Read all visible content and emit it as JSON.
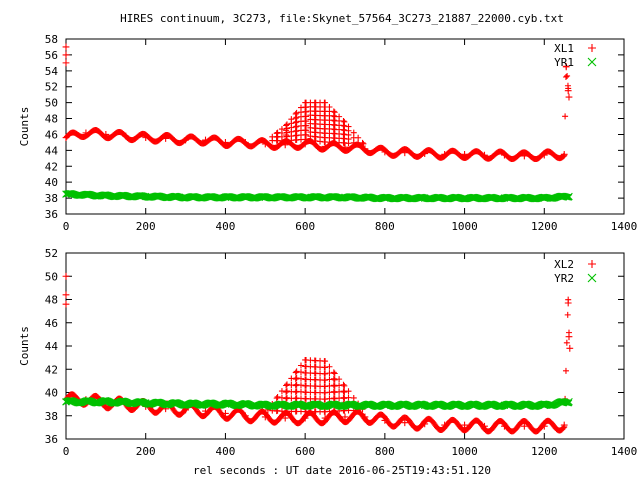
{
  "title": "HIRES continuum, 3C273, file:Skynet_57564_3C273_21887_22000.cyb.txt",
  "xlabel": "rel seconds : UT date 2016-06-25T19:43:51.120",
  "colors": {
    "red": "#ff0000",
    "green": "#00c000"
  },
  "chart_data": [
    {
      "type": "scatter",
      "ylabel": "Counts",
      "xlim": [
        0,
        1400
      ],
      "ylim": [
        36,
        58
      ],
      "x_ticks": [
        0,
        200,
        400,
        600,
        800,
        1000,
        1200,
        1400
      ],
      "y_ticks": [
        36,
        38,
        40,
        42,
        44,
        46,
        48,
        50,
        52,
        54,
        56,
        58
      ],
      "grid": false,
      "legend": "top-right",
      "series": [
        {
          "name": "XL1",
          "marker": "plus",
          "color": "#ff0000",
          "x": [
            0,
            0,
            0,
            0,
            50,
            100,
            150,
            200,
            250,
            300,
            350,
            400,
            450,
            500,
            550,
            600,
            650,
            700,
            750,
            800,
            850,
            900,
            950,
            1000,
            1050,
            1100,
            1150,
            1200,
            1250,
            1255,
            1260,
            1262
          ],
          "y": [
            57.0,
            56.0,
            55.0,
            45.6,
            46.2,
            46.0,
            45.8,
            45.6,
            45.5,
            45.3,
            45.3,
            45.0,
            45.0,
            44.8,
            44.7,
            44.8,
            44.5,
            44.4,
            44.2,
            43.8,
            43.7,
            43.6,
            43.5,
            43.5,
            43.4,
            43.4,
            43.3,
            43.4,
            43.5,
            54.5,
            51.5,
            50.7
          ],
          "y_high": [
            57.0,
            56.0,
            55.0,
            45.6,
            46.2,
            46.0,
            45.8,
            45.6,
            45.5,
            45.3,
            45.3,
            45.0,
            45.0,
            45.0,
            47.0,
            50.0,
            50.0,
            47.5,
            44.6,
            43.8,
            43.7,
            43.6,
            43.5,
            43.5,
            43.4,
            43.4,
            43.3,
            43.4,
            43.5,
            54.5,
            51.5,
            50.7
          ]
        },
        {
          "name": "YR1",
          "marker": "cross",
          "color": "#00c000",
          "x": [
            0,
            100,
            200,
            300,
            400,
            500,
            600,
            700,
            800,
            900,
            1000,
            1100,
            1200,
            1262
          ],
          "y": [
            38.5,
            38.3,
            38.2,
            38.1,
            38.1,
            38.1,
            38.1,
            38.1,
            38.0,
            38.0,
            38.0,
            38.0,
            38.0,
            38.2
          ]
        }
      ]
    },
    {
      "type": "scatter",
      "ylabel": "Counts",
      "xlim": [
        0,
        1400
      ],
      "ylim": [
        36,
        52
      ],
      "x_ticks": [
        0,
        200,
        400,
        600,
        800,
        1000,
        1200,
        1400
      ],
      "y_ticks": [
        36,
        38,
        40,
        42,
        44,
        46,
        48,
        50,
        52
      ],
      "grid": false,
      "legend": "top-right",
      "series": [
        {
          "name": "XL2",
          "marker": "plus",
          "color": "#ff0000",
          "x": [
            0,
            0,
            0,
            0,
            50,
            100,
            150,
            200,
            250,
            300,
            350,
            400,
            450,
            500,
            550,
            600,
            650,
            700,
            750,
            800,
            850,
            900,
            950,
            1000,
            1050,
            1100,
            1150,
            1200,
            1250,
            1260,
            1262,
            1264
          ],
          "y": [
            50.0,
            48.4,
            47.6,
            39.4,
            39.4,
            39.1,
            39.0,
            38.8,
            38.6,
            38.5,
            38.4,
            38.2,
            38.0,
            37.9,
            37.8,
            37.8,
            37.8,
            37.9,
            37.9,
            37.6,
            37.4,
            37.3,
            37.2,
            37.2,
            37.1,
            37.1,
            37.1,
            37.1,
            37.2,
            47.7,
            44.8,
            43.8
          ],
          "y_high": [
            50.0,
            48.4,
            47.6,
            39.4,
            39.4,
            39.1,
            39.0,
            38.8,
            38.6,
            38.5,
            38.4,
            38.2,
            38.0,
            38.2,
            40.5,
            42.8,
            42.7,
            40.5,
            38.3,
            37.6,
            37.4,
            37.3,
            37.2,
            37.2,
            37.1,
            37.1,
            37.1,
            37.1,
            37.2,
            47.7,
            44.8,
            43.8
          ]
        },
        {
          "name": "YR2",
          "marker": "cross",
          "color": "#00c000",
          "x": [
            0,
            100,
            200,
            300,
            400,
            500,
            600,
            700,
            800,
            900,
            1000,
            1100,
            1200,
            1262
          ],
          "y": [
            39.2,
            39.2,
            39.1,
            39.0,
            39.0,
            38.9,
            38.9,
            38.9,
            38.9,
            38.9,
            38.9,
            38.9,
            38.9,
            39.2
          ]
        }
      ]
    }
  ]
}
